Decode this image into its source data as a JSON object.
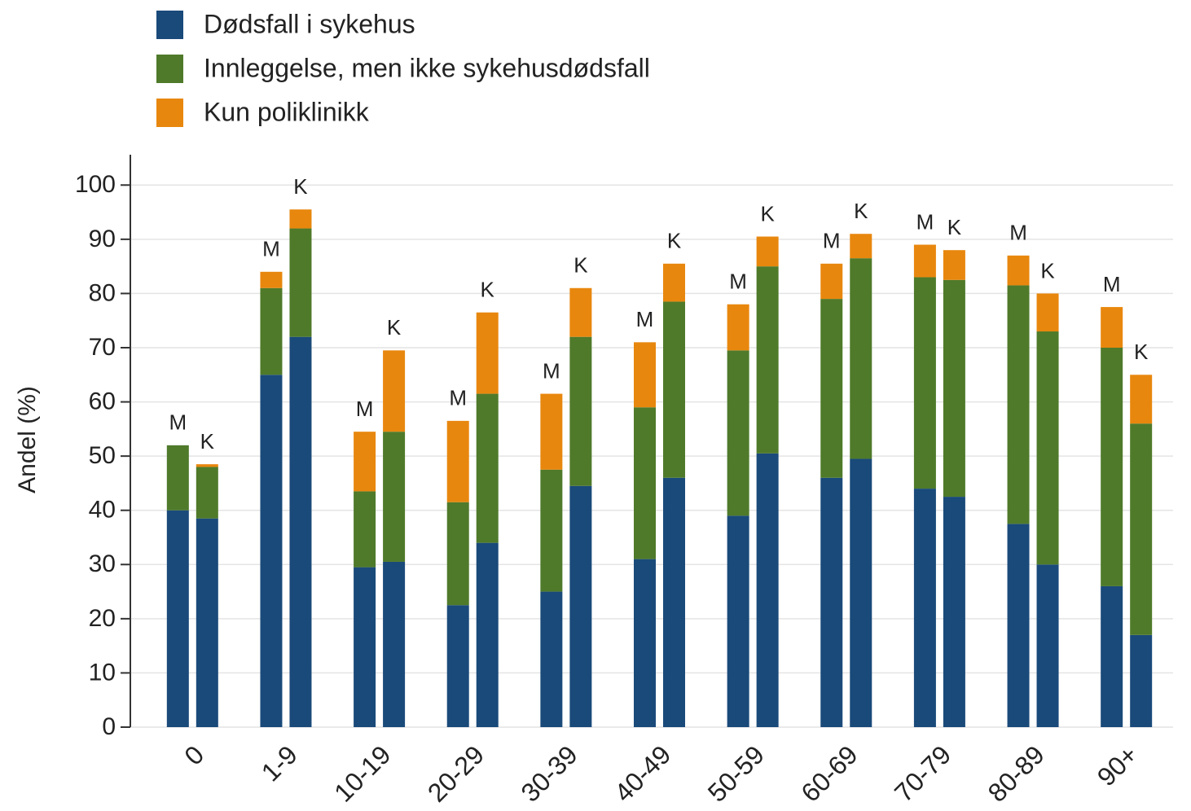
{
  "chart_data": {
    "type": "grouped_stacked_bar",
    "categories": [
      "0",
      "1-9",
      "10-19",
      "20-29",
      "30-39",
      "40-49",
      "50-59",
      "60-69",
      "70-79",
      "80-89",
      "90+"
    ],
    "bar_labels": [
      "M",
      "K"
    ],
    "series": [
      {
        "name": "Dødsfall i sykehus",
        "color": "#1a4a7a",
        "values": [
          [
            40,
            38.5
          ],
          [
            65,
            72
          ],
          [
            29.5,
            30.5
          ],
          [
            22.5,
            34
          ],
          [
            25,
            44.5
          ],
          [
            31,
            46
          ],
          [
            39,
            50.5
          ],
          [
            46,
            49.5
          ],
          [
            44,
            42.5
          ],
          [
            37.5,
            30
          ],
          [
            26,
            17
          ]
        ]
      },
      {
        "name": "Innleggelse, men ikke sykehusdødsfall",
        "color": "#4f7a2a",
        "values": [
          [
            12,
            9.5
          ],
          [
            16,
            20
          ],
          [
            14,
            24
          ],
          [
            19,
            27.5
          ],
          [
            22.5,
            27.5
          ],
          [
            28,
            32.5
          ],
          [
            30.5,
            34.5
          ],
          [
            33,
            37
          ],
          [
            39,
            40
          ],
          [
            44,
            43
          ],
          [
            44,
            39
          ]
        ]
      },
      {
        "name": "Kun poliklinikk",
        "color": "#e8870e",
        "values": [
          [
            0,
            0.5
          ],
          [
            3,
            3.5
          ],
          [
            11,
            15
          ],
          [
            15,
            15
          ],
          [
            14,
            9
          ],
          [
            12,
            7
          ],
          [
            8.5,
            5.5
          ],
          [
            6.5,
            4.5
          ],
          [
            6,
            5.5
          ],
          [
            5.5,
            7
          ],
          [
            7.5,
            9
          ]
        ]
      }
    ],
    "y_label": "Andel (%)",
    "ylim": [
      0,
      105
    ],
    "yticks": [
      0,
      10,
      20,
      30,
      40,
      50,
      60,
      70,
      80,
      90,
      100
    ],
    "grid": true
  }
}
